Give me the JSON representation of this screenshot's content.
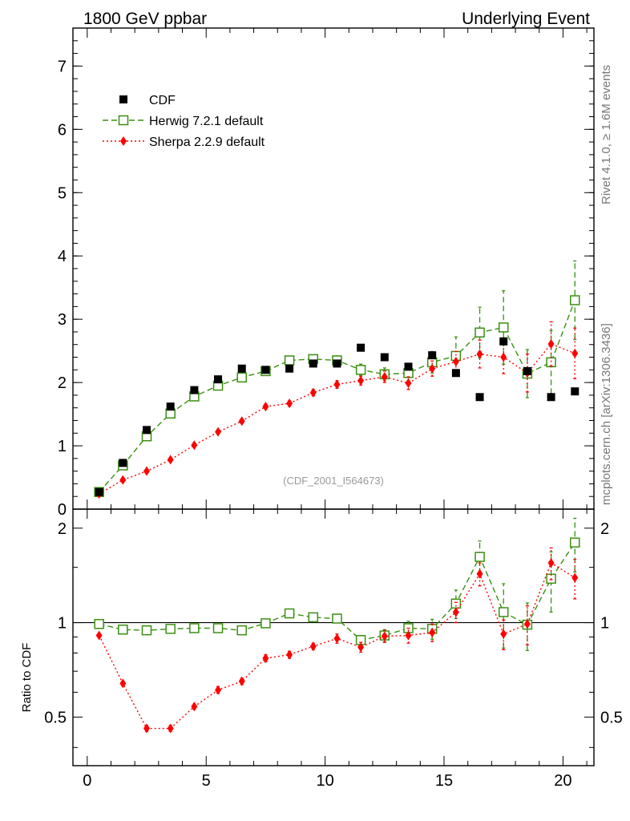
{
  "header": {
    "left_title": "1800 GeV ppbar",
    "right_title": "Underlying Event",
    "side_label_top": "Rivet 4.1.0, ≥ 1.6M events",
    "side_label_bottom": "mcplots.cern.ch [arXiv:1306.3436]",
    "analysis_tag": "(CDF_2001_I564673)"
  },
  "chart_data": [
    {
      "type": "scatter",
      "panel": "main",
      "xlim": [
        -0.6,
        21.3
      ],
      "ylim": [
        0,
        7.6
      ],
      "yticks": [
        0,
        1,
        2,
        3,
        4,
        5,
        6,
        7
      ],
      "ytick_labels": [
        "0",
        "1",
        "2",
        "3",
        "4",
        "5",
        "6",
        "7"
      ],
      "legend": "top-left",
      "series": [
        {
          "name": "CDF",
          "marker": "filled-square",
          "color": "#000000",
          "x": [
            0.5,
            1.5,
            2.5,
            3.5,
            4.5,
            5.5,
            6.5,
            7.5,
            8.5,
            9.5,
            10.5,
            11.5,
            12.5,
            13.5,
            14.5,
            15.5,
            16.5,
            17.5,
            18.5,
            19.5,
            20.5
          ],
          "y": [
            0.27,
            0.73,
            1.25,
            1.62,
            1.88,
            2.05,
            2.22,
            2.2,
            2.22,
            2.3,
            2.3,
            2.55,
            2.4,
            2.25,
            2.43,
            2.15,
            1.77,
            2.65,
            2.18,
            1.77,
            1.86
          ]
        },
        {
          "name": "Herwig 7.2.1 default",
          "marker": "open-square",
          "color": "#3a9010",
          "line": "dashed",
          "x": [
            0.5,
            1.5,
            2.5,
            3.5,
            4.5,
            5.5,
            6.5,
            7.5,
            8.5,
            9.5,
            10.5,
            11.5,
            12.5,
            13.5,
            14.5,
            15.5,
            16.5,
            17.5,
            18.5,
            19.5,
            20.5
          ],
          "y": [
            0.27,
            0.69,
            1.15,
            1.51,
            1.78,
            1.95,
            2.08,
            2.18,
            2.35,
            2.37,
            2.35,
            2.2,
            2.13,
            2.15,
            2.32,
            2.42,
            2.79,
            2.87,
            2.14,
            2.32,
            3.3
          ],
          "err": [
            0.02,
            0.03,
            0.03,
            0.03,
            0.03,
            0.04,
            0.04,
            0.05,
            0.05,
            0.06,
            0.07,
            0.09,
            0.1,
            0.12,
            0.17,
            0.3,
            0.4,
            0.58,
            0.38,
            0.5,
            0.62
          ]
        },
        {
          "name": "Sherpa 2.2.9 default",
          "marker": "filled-diamond",
          "color": "#ff0000",
          "line": "dotted",
          "x": [
            0.5,
            1.5,
            2.5,
            3.5,
            4.5,
            5.5,
            6.5,
            7.5,
            8.5,
            9.5,
            10.5,
            11.5,
            12.5,
            13.5,
            14.5,
            15.5,
            16.5,
            17.5,
            18.5,
            19.5,
            20.5
          ],
          "y": [
            0.24,
            0.46,
            0.6,
            0.78,
            1.01,
            1.22,
            1.39,
            1.62,
            1.67,
            1.84,
            1.97,
            2.03,
            2.09,
            1.99,
            2.22,
            2.33,
            2.45,
            2.4,
            2.15,
            2.61,
            2.46
          ],
          "err": [
            0.01,
            0.02,
            0.02,
            0.02,
            0.03,
            0.03,
            0.03,
            0.04,
            0.04,
            0.05,
            0.06,
            0.07,
            0.09,
            0.1,
            0.12,
            0.16,
            0.22,
            0.26,
            0.3,
            0.35,
            0.4
          ]
        }
      ]
    },
    {
      "type": "scatter",
      "panel": "ratio",
      "ylabel": "Ratio to CDF",
      "xlim": [
        -0.6,
        21.3
      ],
      "ylim": [
        0.35,
        2.3
      ],
      "reference_line": 1,
      "xticks": [
        0,
        5,
        10,
        15,
        20
      ],
      "xtick_labels": [
        "0",
        "5",
        "10",
        "15",
        "20"
      ],
      "yticks": [
        0.5,
        1,
        2
      ],
      "ytick_labels": [
        "0.5",
        "1",
        "2"
      ],
      "series": [
        {
          "name": "Herwig 7.2.1 default",
          "x": [
            0.5,
            1.5,
            2.5,
            3.5,
            4.5,
            5.5,
            6.5,
            7.5,
            8.5,
            9.5,
            10.5,
            11.5,
            12.5,
            13.5,
            14.5,
            15.5,
            16.5,
            17.5,
            18.5,
            19.5,
            20.5
          ],
          "y": [
            0.99,
            0.95,
            0.945,
            0.955,
            0.96,
            0.96,
            0.945,
            0.995,
            1.07,
            1.04,
            1.03,
            0.88,
            0.91,
            0.96,
            0.955,
            1.15,
            1.62,
            1.08,
            0.985,
            1.38,
            1.8
          ],
          "err": [
            0.01,
            0.01,
            0.01,
            0.01,
            0.01,
            0.01,
            0.01,
            0.015,
            0.02,
            0.02,
            0.02,
            0.03,
            0.04,
            0.05,
            0.07,
            0.12,
            0.2,
            0.25,
            0.17,
            0.3,
            0.35
          ]
        },
        {
          "name": "Sherpa 2.2.9 default",
          "x": [
            0.5,
            1.5,
            2.5,
            3.5,
            4.5,
            5.5,
            6.5,
            7.5,
            8.5,
            9.5,
            10.5,
            11.5,
            12.5,
            13.5,
            14.5,
            15.5,
            16.5,
            17.5,
            18.5,
            19.5,
            20.5
          ],
          "y": [
            0.91,
            0.64,
            0.46,
            0.46,
            0.54,
            0.61,
            0.65,
            0.77,
            0.79,
            0.84,
            0.89,
            0.835,
            0.905,
            0.91,
            0.93,
            1.08,
            1.43,
            0.92,
            0.99,
            1.55,
            1.39
          ],
          "err": [
            0.01,
            0.01,
            0.01,
            0.01,
            0.01,
            0.015,
            0.015,
            0.02,
            0.02,
            0.02,
            0.03,
            0.03,
            0.04,
            0.05,
            0.06,
            0.08,
            0.12,
            0.1,
            0.14,
            0.18,
            0.2
          ]
        }
      ]
    }
  ]
}
